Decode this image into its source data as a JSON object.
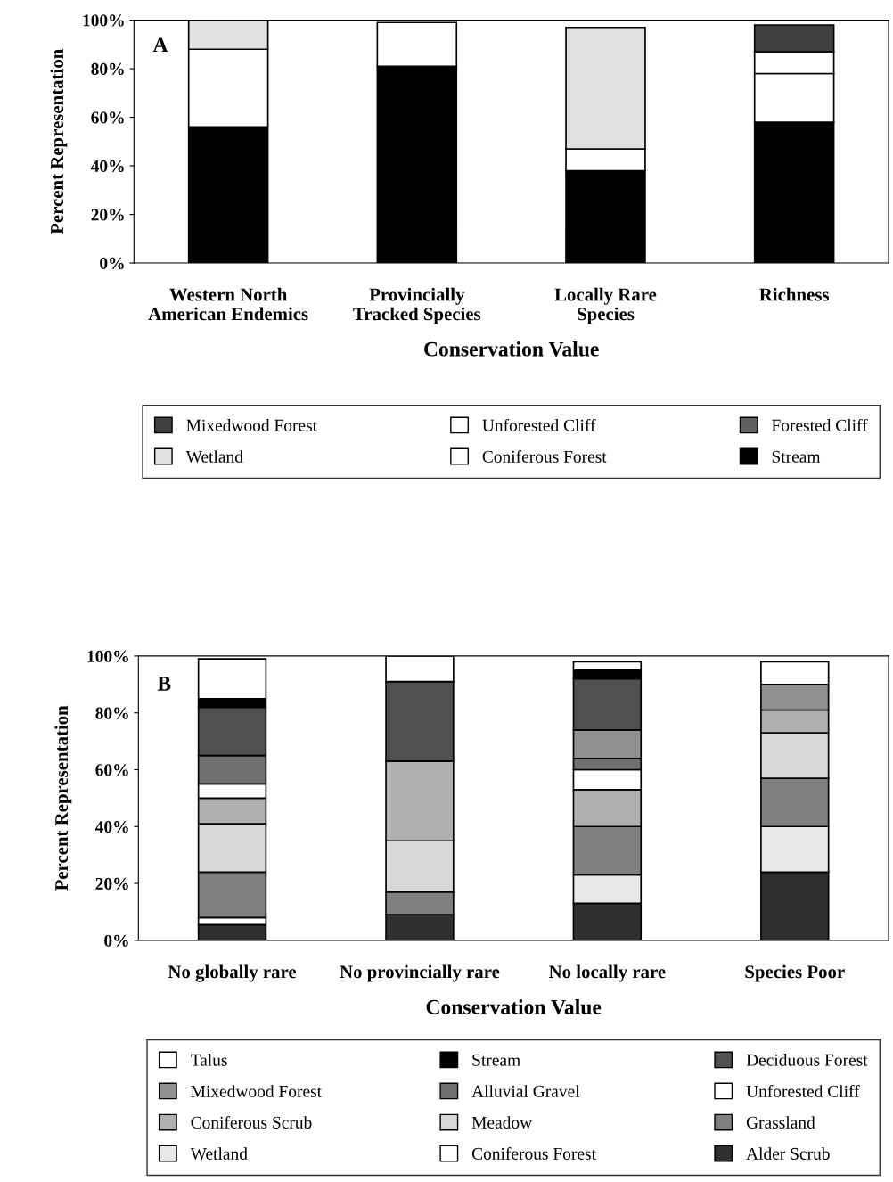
{
  "chart_data": [
    {
      "type": "bar",
      "stacked": true,
      "annotations": [
        "A"
      ],
      "xlabel": "Conservation Value",
      "ylabel": "Percent Representation",
      "categories": [
        "Western North\nAmerican Endemics",
        "Provincially\nTracked Species",
        "Locally Rare\nSpecies",
        "Richness"
      ],
      "ylim": [
        0,
        100
      ],
      "yticks": [
        {
          "value": 0,
          "label": "0%"
        },
        {
          "value": 20,
          "label": "20%"
        },
        {
          "value": 40,
          "label": "40%"
        },
        {
          "value": 60,
          "label": "60%"
        },
        {
          "value": 80,
          "label": "80%"
        },
        {
          "value": 100,
          "label": "100%"
        }
      ],
      "grid": false,
      "legend": "bottom",
      "series": [
        {
          "name": "Stream",
          "color": "#000000",
          "values": [
            56,
            81,
            38,
            58
          ]
        },
        {
          "name": "Coniferous Forest",
          "color": "#ffffff",
          "values": [
            32,
            18,
            9,
            20
          ]
        },
        {
          "name": "Wetland",
          "color": "#e0e0e0",
          "values": [
            12,
            0,
            50,
            0
          ]
        },
        {
          "name": "Forested Cliff",
          "color": "#606060",
          "values": [
            0,
            0,
            0,
            0
          ]
        },
        {
          "name": "Unforested Cliff",
          "color": "#ffffff",
          "values": [
            0,
            0,
            0,
            9
          ]
        },
        {
          "name": "Mixedwood Forest",
          "color": "#404040",
          "values": [
            0,
            0,
            0,
            11
          ]
        }
      ]
    },
    {
      "type": "bar",
      "stacked": true,
      "annotations": [
        "B"
      ],
      "xlabel": "Conservation Value",
      "ylabel": "Percent Representation",
      "categories": [
        "No globally rare",
        "No provincially rare",
        "No locally rare",
        "Species Poor"
      ],
      "ylim": [
        0,
        100
      ],
      "yticks": [
        {
          "value": 0,
          "label": "0%"
        },
        {
          "value": 20,
          "label": "20%"
        },
        {
          "value": 40,
          "label": "40%"
        },
        {
          "value": 60,
          "label": "60%"
        },
        {
          "value": 80,
          "label": "80%"
        },
        {
          "value": 100,
          "label": "100%"
        }
      ],
      "grid": false,
      "legend": "bottom",
      "series": [
        {
          "name": "Alder Scrub",
          "color": "#303030",
          "values": [
            5.5,
            9,
            13,
            24
          ]
        },
        {
          "name": "Coniferous Forest",
          "color": "#ffffff",
          "values": [
            2.5,
            0,
            0,
            0
          ]
        },
        {
          "name": "Wetland",
          "color": "#e8e8e8",
          "values": [
            0,
            0,
            10,
            16
          ]
        },
        {
          "name": "Grassland",
          "color": "#808080",
          "values": [
            16,
            8,
            17,
            17
          ]
        },
        {
          "name": "Meadow",
          "color": "#d8d8d8",
          "values": [
            17,
            18,
            0,
            16
          ]
        },
        {
          "name": "Coniferous Scrub",
          "color": "#b0b0b0",
          "values": [
            9,
            28,
            13,
            8
          ]
        },
        {
          "name": "Unforested Cliff",
          "color": "#ffffff",
          "values": [
            5,
            0,
            7,
            0
          ]
        },
        {
          "name": "Alluvial Gravel",
          "color": "#707070",
          "values": [
            10,
            0,
            4,
            0
          ]
        },
        {
          "name": "Mixedwood Forest",
          "color": "#909090",
          "values": [
            0,
            0,
            10,
            9
          ]
        },
        {
          "name": "Deciduous Forest",
          "color": "#505050",
          "values": [
            17,
            28,
            18,
            0
          ]
        },
        {
          "name": "Stream",
          "color": "#000000",
          "values": [
            3,
            0,
            3,
            0
          ]
        },
        {
          "name": "Talus",
          "color": "#ffffff",
          "values": [
            14,
            9,
            3,
            8
          ]
        }
      ]
    }
  ]
}
